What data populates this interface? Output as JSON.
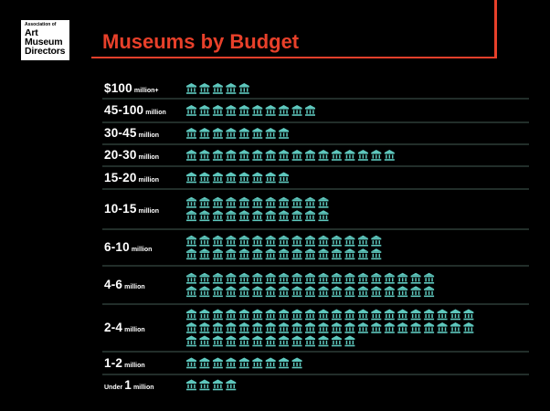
{
  "logo": {
    "small": "Association of",
    "lines": [
      "Art",
      "Museum",
      "Directors"
    ]
  },
  "title": "Museums by Budget",
  "colors": {
    "accent": "#e8402a",
    "icon": "#5ec7bd",
    "divider": "#5a7a72",
    "background": "#000000"
  },
  "chart_data": {
    "type": "pictograph",
    "title": "Museums by Budget",
    "icon": "museum-building-icon",
    "categories": [
      {
        "prefix": "",
        "number": "$100",
        "unit": "million+",
        "count": 5
      },
      {
        "prefix": "",
        "number": "45-100",
        "unit": "million",
        "count": 10
      },
      {
        "prefix": "",
        "number": "30-45",
        "unit": "million",
        "count": 8
      },
      {
        "prefix": "",
        "number": "20-30",
        "unit": "million",
        "count": 16
      },
      {
        "prefix": "",
        "number": "15-20",
        "unit": "million",
        "count": 8
      },
      {
        "prefix": "",
        "number": "10-15",
        "unit": "million",
        "count": 22
      },
      {
        "prefix": "",
        "number": "6-10",
        "unit": "million",
        "count": 30
      },
      {
        "prefix": "",
        "number": "4-6",
        "unit": "million",
        "count": 38
      },
      {
        "prefix": "",
        "number": "2-4",
        "unit": "million",
        "count": 57
      },
      {
        "prefix": "",
        "number": "1-2",
        "unit": "million",
        "count": 9
      },
      {
        "prefix": "Under",
        "number": "1",
        "unit": "million",
        "count": 4
      }
    ]
  }
}
